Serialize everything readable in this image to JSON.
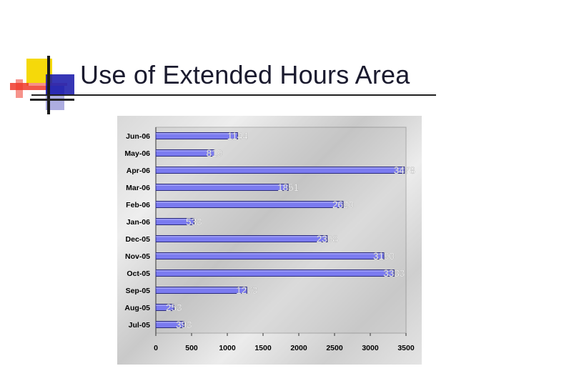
{
  "slide": {
    "title": "Use of Extended Hours Area"
  },
  "colors": {
    "bar": "#7b7bf0",
    "bar_edge": "#2a2a7a",
    "data_label": "#ffffff",
    "title": "#1a1a2e",
    "logo_yellow": "#f5d90a",
    "logo_red": "#ef3a2c",
    "logo_blue": "#1414a8"
  },
  "chart_data": {
    "type": "bar",
    "orientation": "horizontal",
    "categories": [
      "Jun-06",
      "May-06",
      "Apr-06",
      "Mar-06",
      "Feb-06",
      "Jan-06",
      "Dec-05",
      "Nov-05",
      "Oct-05",
      "Sep-05",
      "Aug-05",
      "Jul-05"
    ],
    "values": [
      1144,
      819,
      3478,
      1851,
      2620,
      533,
      2398,
      3190,
      3333,
      1273,
      253,
      393
    ],
    "data_labels": [
      "1144",
      "819",
      "3478",
      "1851",
      "2620",
      "533",
      "2398",
      "3190",
      "3333",
      "1273",
      "253",
      "393"
    ],
    "xlim": [
      0,
      3500
    ],
    "xticks": [
      "0",
      "500",
      "1000",
      "1500",
      "2000",
      "2500",
      "3000",
      "3500"
    ],
    "title": "",
    "xlabel": "",
    "ylabel": "",
    "grid": false,
    "legend": "none"
  }
}
